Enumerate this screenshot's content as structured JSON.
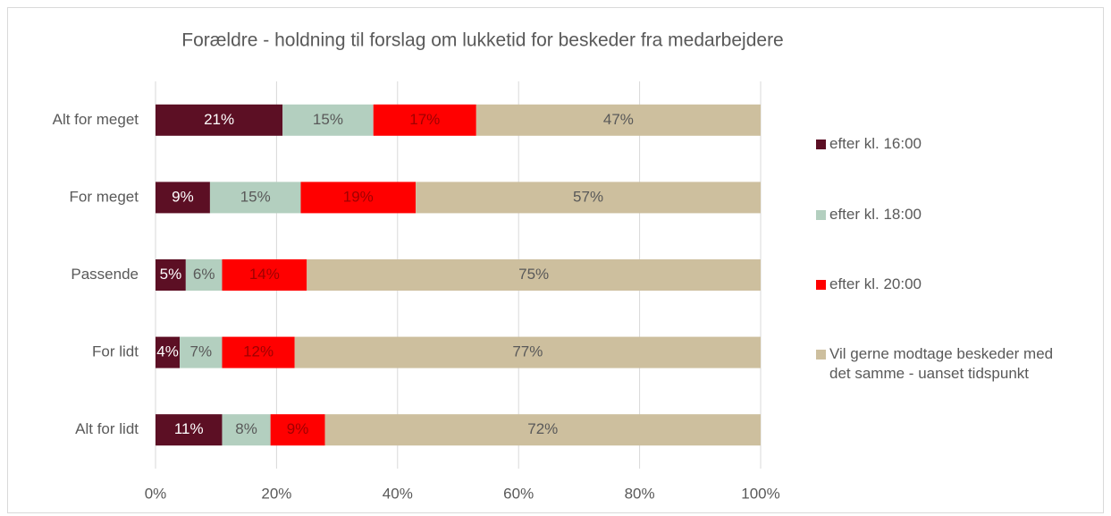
{
  "chart_data": {
    "type": "stacked-bar-horizontal",
    "title": "Forældre - holdning til forslag om lukketid for beskeder fra medarbejdere",
    "categories": [
      "Alt for meget",
      "For meget",
      "Passende",
      "For lidt",
      "Alt for lidt"
    ],
    "series": [
      {
        "name": "efter kl. 16:00",
        "color": "#5c0f24",
        "values": [
          21,
          9,
          5,
          4,
          11
        ],
        "value_labels": [
          "21%",
          "9%",
          "5%",
          "4%",
          "11%"
        ]
      },
      {
        "name": "efter kl. 18:00",
        "color": "#b3cfbf",
        "values": [
          15,
          15,
          6,
          7,
          8
        ],
        "value_labels": [
          "15%",
          "15%",
          "6%",
          "7%",
          "8%"
        ]
      },
      {
        "name": "efter kl. 20:00",
        "color": "#ff0000",
        "values": [
          17,
          19,
          14,
          12,
          9
        ],
        "value_labels": [
          "17%",
          "19%",
          "14%",
          "12%",
          "9%"
        ]
      },
      {
        "name": "Vil gerne modtage beskeder med det samme - uanset tidspunkt",
        "color": "#cdbf9e",
        "values": [
          47,
          57,
          75,
          77,
          72
        ],
        "value_labels": [
          "47%",
          "57%",
          "75%",
          "77%",
          "72%"
        ]
      }
    ],
    "xlim": [
      0,
      100
    ],
    "xticks": [
      {
        "value": 0,
        "label": "0%"
      },
      {
        "value": 20,
        "label": "20%"
      },
      {
        "value": 40,
        "label": "40%"
      },
      {
        "value": 60,
        "label": "60%"
      },
      {
        "value": 80,
        "label": "80%"
      },
      {
        "value": 100,
        "label": "100%"
      }
    ],
    "grid": true,
    "legend": "right"
  }
}
